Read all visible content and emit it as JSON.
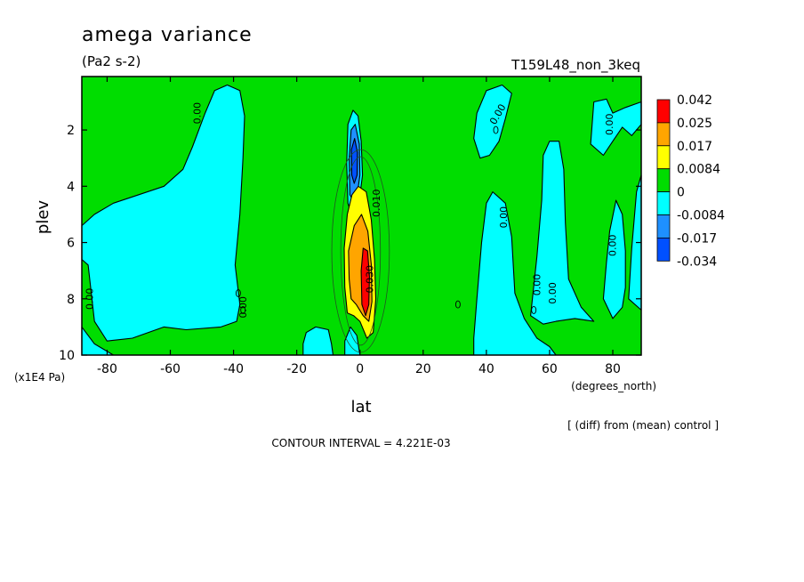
{
  "chart_data": {
    "type": "heatmap",
    "title": "amega variance",
    "units": "(Pa2 s-2)",
    "run_label": "T159L48_non_3keq",
    "xlabel": "lat",
    "xunits": "(degrees_north)",
    "ylabel": "plev",
    "yunits": "(x1E4 Pa)",
    "xlim": [
      -88,
      89
    ],
    "ylim": [
      10,
      0.1
    ],
    "x_ticks": [
      -80,
      -60,
      -40,
      -20,
      0,
      20,
      40,
      60,
      80
    ],
    "x_tick_labels": [
      "-80",
      "-60",
      "-40",
      "-20",
      "0",
      "20",
      "40",
      "60",
      "80"
    ],
    "y_ticks": [
      2,
      4,
      6,
      8,
      10
    ],
    "y_tick_labels": [
      "2",
      "4",
      "6",
      "8",
      "10"
    ],
    "y_reversed": true,
    "contour_interval_text": "CONTOUR INTERVAL = 4.221E-03",
    "note": "[ (diff) from (mean) control ]",
    "contour_labels": [
      "0.00",
      "0.00",
      "0.00",
      "0.00",
      "0.00",
      "0.00",
      "0.00",
      "0.00",
      "0.00",
      "0.010",
      "0.030"
    ],
    "legend": {
      "placement": "right",
      "levels": [
        "0.042",
        "0.025",
        "0.017",
        "0.0084",
        "0",
        "-0.0084",
        "-0.017",
        "-0.034"
      ],
      "colors": [
        "#ff0000",
        "#ffa500",
        "#ffff00",
        "#00dd00",
        "#00ffff",
        "#1e90ff",
        "#0050ff"
      ]
    },
    "colors": {
      "background_field": "#00dd00",
      "negative_weak": "#00ffff",
      "negative_mid": "#1e90ff",
      "negative_strong": "#0050ff",
      "positive_weak": "#ffff00",
      "positive_mid": "#ffa500",
      "positive_strong": "#ff0000"
    },
    "regions": [
      {
        "kind": "negative_weak",
        "polygon": [
          [
            -88,
            6.6
          ],
          [
            -86,
            6.8
          ],
          [
            -84,
            8.8
          ],
          [
            -80,
            9.5
          ],
          [
            -72,
            9.4
          ],
          [
            -62,
            9.0
          ],
          [
            -55,
            9.1
          ],
          [
            -44,
            9.0
          ],
          [
            -39,
            8.8
          ],
          [
            -38,
            8.2
          ],
          [
            -39.5,
            6.8
          ],
          [
            -38,
            5.0
          ],
          [
            -37,
            3.0
          ],
          [
            -36.5,
            1.5
          ],
          [
            -38,
            0.6
          ],
          [
            -42,
            0.4
          ],
          [
            -46,
            0.6
          ],
          [
            -49,
            1.4
          ],
          [
            -53,
            2.6
          ],
          [
            -56,
            3.4
          ],
          [
            -62,
            4.0
          ],
          [
            -70,
            4.3
          ],
          [
            -78,
            4.6
          ],
          [
            -84,
            5.0
          ],
          [
            -88,
            5.4
          ]
        ]
      },
      {
        "kind": "negative_weak",
        "polygon": [
          [
            -88,
            9.0
          ],
          [
            -84,
            9.6
          ],
          [
            -78,
            10.0
          ],
          [
            -88,
            10.0
          ]
        ]
      },
      {
        "kind": "negative_weak",
        "polygon": [
          [
            -18,
            9.6
          ],
          [
            -17,
            9.2
          ],
          [
            -14,
            9.0
          ],
          [
            -10,
            9.1
          ],
          [
            -9,
            9.6
          ],
          [
            -8.5,
            10.0
          ],
          [
            -18,
            10.0
          ]
        ]
      },
      {
        "kind": "negative_weak",
        "polygon": [
          [
            -4.8,
            9.5
          ],
          [
            -3,
            9.0
          ],
          [
            -1,
            9.3
          ],
          [
            0,
            10.0
          ],
          [
            -4.8,
            10.0
          ]
        ]
      },
      {
        "kind": "negative_weak",
        "polygon": [
          [
            -3.8,
            4.6
          ],
          [
            -4.2,
            3.2
          ],
          [
            -3.8,
            1.8
          ],
          [
            -2.2,
            1.3
          ],
          [
            -0.6,
            1.5
          ],
          [
            0.4,
            2.4
          ],
          [
            0.8,
            3.6
          ],
          [
            -0.2,
            4.5
          ],
          [
            -1.6,
            4.9
          ],
          [
            -3.0,
            4.9
          ]
        ]
      },
      {
        "kind": "negative_mid",
        "polygon": [
          [
            -3.2,
            4.3
          ],
          [
            -3.4,
            3.0
          ],
          [
            -2.8,
            2.0
          ],
          [
            -1.5,
            1.8
          ],
          [
            -0.2,
            2.5
          ],
          [
            0.0,
            3.6
          ],
          [
            -1.0,
            4.4
          ],
          [
            -2.3,
            4.5
          ]
        ]
      },
      {
        "kind": "negative_strong",
        "polygon": [
          [
            -2.6,
            3.6
          ],
          [
            -2.7,
            2.7
          ],
          [
            -1.7,
            2.3
          ],
          [
            -0.8,
            2.8
          ],
          [
            -0.9,
            3.6
          ],
          [
            -1.8,
            3.9
          ]
        ]
      },
      {
        "kind": "negative_weak",
        "polygon": [
          [
            -0.8,
            7.2
          ],
          [
            -0.4,
            6.5
          ],
          [
            0.3,
            6.8
          ],
          [
            0.3,
            7.8
          ],
          [
            -0.3,
            8.1
          ],
          [
            -0.8,
            7.7
          ]
        ]
      },
      {
        "kind": "positive_weak",
        "polygon": [
          [
            -4.8,
            7.6
          ],
          [
            -5.0,
            6.2
          ],
          [
            -4.0,
            5.0
          ],
          [
            -2.5,
            4.3
          ],
          [
            -0.5,
            4.0
          ],
          [
            2.0,
            4.2
          ],
          [
            3.6,
            5.2
          ],
          [
            4.6,
            6.6
          ],
          [
            5.0,
            8.0
          ],
          [
            4.2,
            9.2
          ],
          [
            2.2,
            9.4
          ],
          [
            0.0,
            8.8
          ],
          [
            -2.0,
            8.6
          ],
          [
            -4.0,
            8.5
          ]
        ]
      },
      {
        "kind": "positive_mid",
        "polygon": [
          [
            -3.4,
            7.3
          ],
          [
            -3.6,
            6.3
          ],
          [
            -1.8,
            5.4
          ],
          [
            0.5,
            5.0
          ],
          [
            2.5,
            5.6
          ],
          [
            3.6,
            6.8
          ],
          [
            3.8,
            8.1
          ],
          [
            2.8,
            8.8
          ],
          [
            1.0,
            8.6
          ],
          [
            -1.2,
            8.2
          ],
          [
            -2.8,
            8.0
          ]
        ]
      },
      {
        "kind": "positive_strong",
        "polygon": [
          [
            0.6,
            8.2
          ],
          [
            0.4,
            7.0
          ],
          [
            1.0,
            6.2
          ],
          [
            2.4,
            6.3
          ],
          [
            3.0,
            7.2
          ],
          [
            2.8,
            8.2
          ],
          [
            1.8,
            8.6
          ]
        ]
      },
      {
        "kind": "negative_weak",
        "polygon": [
          [
            36,
            9.4
          ],
          [
            37,
            8.0
          ],
          [
            38.5,
            6.0
          ],
          [
            40,
            4.6
          ],
          [
            42,
            4.2
          ],
          [
            46,
            4.6
          ],
          [
            48,
            5.8
          ],
          [
            49,
            7.8
          ],
          [
            52,
            8.7
          ],
          [
            56,
            9.4
          ],
          [
            60,
            9.7
          ],
          [
            62,
            10.0
          ],
          [
            36,
            10.0
          ]
        ]
      },
      {
        "kind": "negative_weak",
        "polygon": [
          [
            54,
            8.6
          ],
          [
            56,
            6.5
          ],
          [
            57.5,
            4.5
          ],
          [
            58,
            2.9
          ],
          [
            60,
            2.4
          ],
          [
            63,
            2.4
          ],
          [
            64.5,
            3.4
          ],
          [
            65,
            5.3
          ],
          [
            66,
            7.3
          ],
          [
            70,
            8.3
          ],
          [
            74,
            8.8
          ],
          [
            68,
            8.7
          ],
          [
            62,
            8.8
          ],
          [
            58,
            8.9
          ]
        ]
      },
      {
        "kind": "negative_weak",
        "polygon": [
          [
            36,
            2.3
          ],
          [
            37,
            1.4
          ],
          [
            40,
            0.6
          ],
          [
            45,
            0.4
          ],
          [
            48,
            0.7
          ],
          [
            46,
            1.6
          ],
          [
            44,
            2.4
          ],
          [
            41,
            2.9
          ],
          [
            38,
            3.0
          ]
        ]
      },
      {
        "kind": "negative_weak",
        "polygon": [
          [
            73,
            2.5
          ],
          [
            74,
            1.0
          ],
          [
            78,
            0.9
          ],
          [
            80,
            1.4
          ],
          [
            84,
            1.2
          ],
          [
            89,
            1.0
          ],
          [
            89,
            1.8
          ],
          [
            86,
            2.2
          ],
          [
            83,
            1.9
          ],
          [
            80,
            2.4
          ],
          [
            77,
            2.9
          ]
        ]
      },
      {
        "kind": "negative_weak",
        "polygon": [
          [
            77,
            8.0
          ],
          [
            78,
            6.7
          ],
          [
            79,
            5.6
          ],
          [
            81,
            4.5
          ],
          [
            83,
            5.0
          ],
          [
            84,
            6.3
          ],
          [
            84,
            7.6
          ],
          [
            83,
            8.3
          ],
          [
            80,
            8.7
          ]
        ]
      },
      {
        "kind": "negative_weak",
        "polygon": [
          [
            85,
            8.0
          ],
          [
            86,
            6.2
          ],
          [
            87.5,
            4.2
          ],
          [
            89,
            3.6
          ],
          [
            89,
            8.4
          ]
        ]
      }
    ]
  }
}
